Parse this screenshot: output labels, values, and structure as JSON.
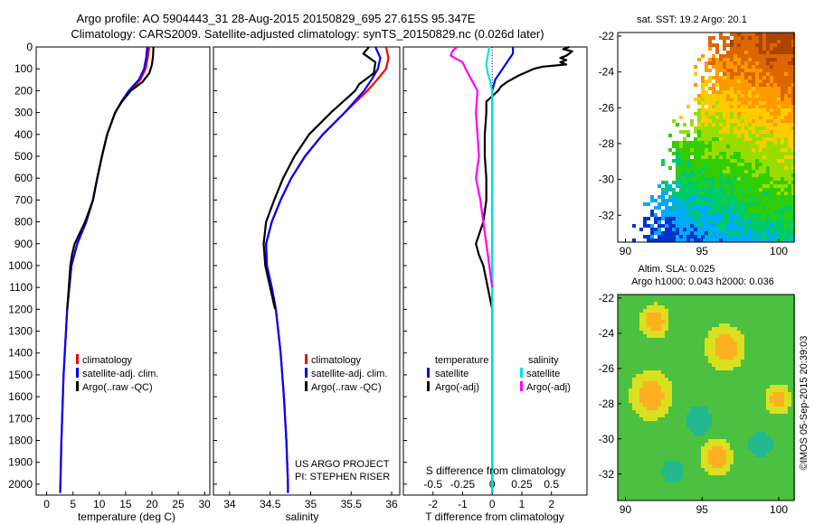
{
  "header": {
    "title_line1": "Argo profile: AO 5904443_31 28-Aug-2015 20150829_695 27.615S 95.347E",
    "title_line2": "Climatology: CARS2009. Satellite-adjusted climatology: synTS_20150829.nc (0.026d later)"
  },
  "colors": {
    "climatology": "#ff0000",
    "satellite": "#0000ff",
    "argo": "#000000",
    "cyan": "#00e5e5",
    "magenta": "#ff00ff"
  },
  "chart_data": [
    {
      "type": "line",
      "id": "temperature",
      "xlabel": "temperature (deg C)",
      "xlim": [
        -2,
        31
      ],
      "ylim": [
        2050,
        0
      ],
      "xticks": [
        0,
        5,
        10,
        15,
        20,
        25,
        30
      ],
      "yticks": [
        0,
        100,
        200,
        300,
        400,
        500,
        600,
        700,
        800,
        900,
        1000,
        1100,
        1200,
        1300,
        1400,
        1500,
        1600,
        1700,
        1800,
        1900,
        2000
      ],
      "legend": [
        "climatology",
        "satellite-adj. clim.",
        "Argo(..raw -QC)"
      ],
      "series": [
        {
          "name": "climatology",
          "color": "#ff0000",
          "depth": [
            0,
            50,
            100,
            150,
            200,
            250,
            300,
            400,
            500,
            600,
            700,
            800,
            900,
            1000,
            1200,
            1500,
            1800,
            2000,
            2040
          ],
          "values": [
            19.5,
            19.2,
            18.8,
            17.8,
            15.8,
            14.2,
            13.0,
            11.5,
            10.5,
            9.6,
            8.8,
            7.5,
            5.8,
            4.7,
            3.9,
            3.2,
            2.8,
            2.6,
            2.55
          ]
        },
        {
          "name": "satellite-adj. clim.",
          "color": "#0000ff",
          "depth": [
            0,
            50,
            100,
            150,
            200,
            250,
            300,
            400,
            500,
            600,
            700,
            800,
            900,
            1000,
            1200,
            1500,
            1800,
            2000,
            2040
          ],
          "values": [
            19.1,
            18.9,
            18.5,
            17.5,
            15.6,
            14.2,
            13.0,
            11.5,
            10.5,
            9.6,
            8.8,
            7.5,
            5.8,
            4.7,
            3.9,
            3.2,
            2.8,
            2.6,
            2.55
          ]
        },
        {
          "name": "Argo(..raw -QC)",
          "color": "#000000",
          "depth": [
            0,
            40,
            80,
            120,
            160,
            200,
            250,
            300,
            400,
            500,
            600,
            700,
            800,
            900,
            950,
            1000,
            1200
          ],
          "values": [
            20.3,
            20.2,
            20.0,
            19.5,
            18.2,
            16.0,
            14.3,
            13.0,
            11.5,
            10.5,
            9.6,
            8.8,
            7.3,
            5.3,
            4.8,
            4.5,
            3.9
          ]
        }
      ]
    },
    {
      "type": "line",
      "id": "salinity",
      "xlabel": "salinity",
      "xlim": [
        33.8,
        36.1
      ],
      "ylim": [
        2050,
        0
      ],
      "xticks": [
        34,
        34.5,
        35,
        35.5,
        36
      ],
      "legend": [
        "climatology",
        "satellite-adj. clim.",
        "Argo(..raw -QC)"
      ],
      "series": [
        {
          "name": "climatology",
          "color": "#ff0000",
          "depth": [
            0,
            50,
            100,
            150,
            200,
            300,
            400,
            500,
            600,
            700,
            800,
            900,
            1000,
            1100,
            1200,
            1400,
            1600,
            1800,
            2000,
            2040
          ],
          "values": [
            35.93,
            35.96,
            35.93,
            35.82,
            35.7,
            35.42,
            35.15,
            34.93,
            34.76,
            34.63,
            34.52,
            34.45,
            34.46,
            34.52,
            34.57,
            34.63,
            34.67,
            34.7,
            34.72,
            34.72
          ]
        },
        {
          "name": "satellite-adj. clim.",
          "color": "#0000ff",
          "depth": [
            0,
            50,
            100,
            150,
            200,
            300,
            400,
            500,
            600,
            700,
            800,
            900,
            1000,
            1100,
            1200,
            1400,
            1600,
            1800,
            2000,
            2040
          ],
          "values": [
            35.8,
            35.86,
            35.83,
            35.75,
            35.66,
            35.42,
            35.15,
            34.93,
            34.76,
            34.63,
            34.52,
            34.45,
            34.46,
            34.52,
            34.57,
            34.63,
            34.67,
            34.7,
            34.72,
            34.72
          ]
        },
        {
          "name": "Argo(..raw -QC)",
          "color": "#000000",
          "depth": [
            0,
            30,
            70,
            120,
            170,
            200,
            300,
            400,
            500,
            600,
            700,
            800,
            900,
            950,
            1000,
            1100,
            1200
          ],
          "values": [
            35.72,
            35.65,
            35.8,
            35.78,
            35.6,
            35.55,
            35.25,
            34.98,
            34.8,
            34.66,
            34.55,
            34.45,
            34.42,
            34.43,
            34.44,
            34.5,
            34.56
          ]
        }
      ],
      "annotation_line1": "US ARGO PROJECT",
      "annotation_line2": "PI: STEPHEN RISER"
    },
    {
      "type": "line",
      "id": "differences",
      "xlabel_bottom": "T difference from climatology",
      "xlabel_top": "S difference from climatology",
      "xlim": [
        -3,
        3.2
      ],
      "ylim": [
        2050,
        0
      ],
      "xticks": [
        -2,
        -1,
        0,
        1,
        2
      ],
      "top_xticks": [
        -0.5,
        -0.25,
        0,
        0.25,
        0.5
      ],
      "top_tick_labels": [
        "-0.5",
        "-0.25",
        "0",
        "0.25",
        "0.5"
      ],
      "legend_left_title": "temperature",
      "legend_right_title": "salinity",
      "legend": [
        "satellite",
        "Argo(-adj)",
        "satellite",
        "Argo(-adj)"
      ],
      "series": [
        {
          "name": "satellite",
          "color": "#0000ff",
          "depth": [
            0,
            30,
            60,
            100,
            150,
            200,
            300,
            2040
          ],
          "values": [
            0.7,
            0.7,
            0.55,
            0.35,
            0.1,
            0.0,
            0.0,
            0.0
          ]
        },
        {
          "name": "Argo(-adj)",
          "color": "#000000",
          "depth": [
            0,
            10,
            20,
            30,
            40,
            50,
            60,
            70,
            80,
            90,
            100,
            130,
            160,
            180,
            200,
            250,
            300,
            400,
            500,
            600,
            700,
            800,
            900,
            950,
            1000,
            1100,
            1200,
            1500,
            2040
          ],
          "values": [
            2.6,
            2.4,
            2.7,
            2.6,
            2.5,
            2.3,
            2.5,
            2.3,
            2.5,
            1.7,
            1.4,
            0.9,
            0.5,
            0.3,
            0.2,
            -0.2,
            -0.2,
            -0.25,
            -0.25,
            -0.2,
            -0.2,
            -0.3,
            -0.55,
            -0.45,
            -0.3,
            -0.15,
            0,
            0,
            0
          ]
        },
        {
          "name": "satellite",
          "color": "#00e5e5",
          "depth": [
            0,
            40,
            80,
            120,
            150,
            200,
            250,
            2040
          ],
          "values": [
            -0.1,
            -0.15,
            -0.2,
            -0.15,
            -0.08,
            0,
            0,
            0
          ]
        },
        {
          "name": "Argo(-adj)",
          "color": "#ff00ff",
          "depth": [
            0,
            20,
            40,
            70,
            100,
            200,
            300,
            400,
            500,
            600,
            700,
            800,
            900,
            1000,
            1100
          ],
          "values": [
            -1.2,
            -1.35,
            -1.4,
            -1.0,
            -0.9,
            -0.5,
            -0.55,
            -0.5,
            -0.45,
            -0.55,
            -0.4,
            -0.3,
            -0.2,
            -0.1,
            0
          ]
        }
      ]
    },
    {
      "type": "heatmap",
      "id": "sst-map",
      "title": "sat. SST: 19.2 Argo: 20.1",
      "xlim": [
        89.5,
        101
      ],
      "ylim": [
        -33.5,
        -21.8
      ],
      "xticks": [
        90,
        95,
        100
      ],
      "yticks": [
        -22,
        -24,
        -26,
        -28,
        -30,
        -32
      ]
    },
    {
      "type": "heatmap",
      "id": "sla-map",
      "title_line1": "Altim. SLA: 0.025",
      "title_line2": "Argo h1000: 0.043 h2000: 0.036",
      "xlim": [
        89.5,
        101
      ],
      "ylim": [
        -33.5,
        -21.8
      ],
      "xticks": [
        90,
        95,
        100
      ],
      "yticks": [
        -22,
        -24,
        -26,
        -28,
        -30,
        -32
      ]
    }
  ],
  "credit": "©IMOS 05-Sep-2015 20:39:03"
}
